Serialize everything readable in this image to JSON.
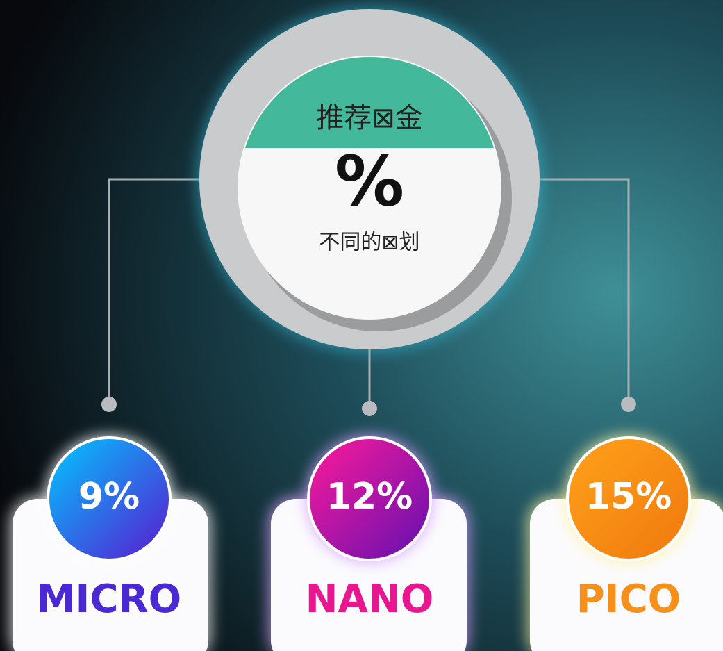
{
  "header": {
    "title": "推荐⊠金",
    "symbol": "%",
    "subtitle": "不同的⊠划"
  },
  "tiers": [
    {
      "value": "9%",
      "name": "MICRO"
    },
    {
      "value": "12%",
      "name": "NANO"
    },
    {
      "value": "15%",
      "name": "PICO"
    }
  ]
}
